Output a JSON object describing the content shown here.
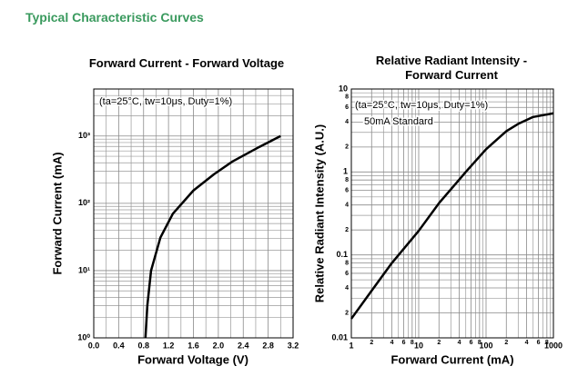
{
  "heading": "Typical Characteristic Curves",
  "chart_data": [
    {
      "type": "line",
      "title": "Forward Current - Forward Voltage",
      "x_label": "Forward Voltage (V)",
      "y_label": "Forward Current (mA)",
      "annotations": [
        "(ta=25°C, tw=10μs, Duty=1%)"
      ],
      "x": [
        0.83,
        0.86,
        0.92,
        1.07,
        1.27,
        1.6,
        1.93,
        2.23,
        2.66,
        3.0
      ],
      "values": [
        1,
        3,
        10,
        31,
        70,
        155,
        270,
        420,
        690,
        1000
      ],
      "color": "#000000",
      "xlim": [
        0,
        3.2
      ],
      "ylim": [
        1,
        5000
      ],
      "ylog": true,
      "grid": true,
      "minor_grid": true,
      "xticks": [
        {
          "value": 0,
          "label": "0.0"
        },
        0.4,
        0.8,
        1.2,
        1.6,
        {
          "value": 2,
          "label": "2.0"
        },
        2.4,
        2.8,
        3.2
      ],
      "yticks": [
        {
          "value": 1,
          "label": "10⁰"
        },
        {
          "value": 10,
          "label": "10¹"
        },
        {
          "value": 100,
          "label": "10²"
        },
        {
          "value": 1000,
          "label": "10³"
        }
      ]
    },
    {
      "type": "line",
      "title": "Relative Radiant Intensity - Forward Current",
      "x_label": "Forward Current (mA)",
      "y_label": "Relative Radiant Intensity (A.U.)",
      "annotations": [
        "(ta=25°C, tw=10μs, Duty=1%)",
        "50mA Standard"
      ],
      "x": [
        1,
        2,
        4,
        10,
        20,
        50,
        100,
        200,
        300,
        500,
        1000
      ],
      "values": [
        0.017,
        0.037,
        0.08,
        0.195,
        0.42,
        1,
        1.88,
        3.1,
        3.8,
        4.6,
        5.1
      ],
      "color": "#000000",
      "xlim": [
        1,
        1000
      ],
      "ylim": [
        0.01,
        10
      ],
      "xlog": true,
      "ylog": true,
      "grid": true,
      "minor_grid": true,
      "xticks": [
        1,
        2,
        4,
        6,
        8,
        10,
        {
          "value": 20,
          "label": "2"
        },
        {
          "value": 40,
          "label": "4"
        },
        {
          "value": 60,
          "label": "6"
        },
        {
          "value": 80,
          "label": "8"
        },
        100,
        {
          "value": 200,
          "label": "2"
        },
        {
          "value": 400,
          "label": "4"
        },
        {
          "value": 600,
          "label": "6"
        },
        {
          "value": 800,
          "label": "8"
        },
        1000
      ],
      "yticks": [
        0.01,
        {
          "value": 0.02,
          "label": "2"
        },
        {
          "value": 0.04,
          "label": "4"
        },
        {
          "value": 0.06,
          "label": "6"
        },
        {
          "value": 0.08,
          "label": "8"
        },
        0.1,
        {
          "value": 0.2,
          "label": "2"
        },
        {
          "value": 0.4,
          "label": "4"
        },
        {
          "value": 0.6,
          "label": "6"
        },
        {
          "value": 0.8,
          "label": "8"
        },
        1,
        2,
        4,
        6,
        8,
        10
      ]
    }
  ]
}
